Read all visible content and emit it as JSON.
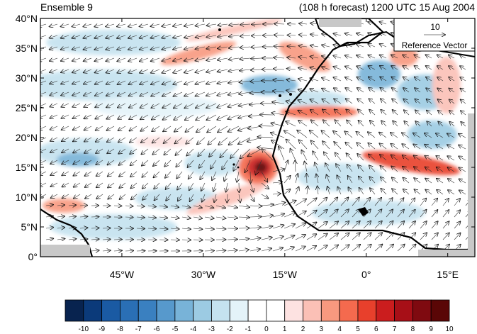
{
  "header": {
    "left_title": "Ensemble 9",
    "right_title": "(108 h forecast) 1200 UTC 15 Aug 2004"
  },
  "reference_vector": {
    "magnitude_label": "10",
    "caption": "Reference Vector"
  },
  "map": {
    "lon_range": [
      -60,
      20
    ],
    "lat_range": [
      0,
      40
    ],
    "y_ticks": [
      {
        "value": 40,
        "label": "40°N"
      },
      {
        "value": 35,
        "label": "35°N"
      },
      {
        "value": 30,
        "label": "30°N"
      },
      {
        "value": 25,
        "label": "25°N"
      },
      {
        "value": 20,
        "label": "20°N"
      },
      {
        "value": 15,
        "label": "15°N"
      },
      {
        "value": 10,
        "label": "10°N"
      },
      {
        "value": 5,
        "label": "5°N"
      },
      {
        "value": 0,
        "label": "0°"
      }
    ],
    "x_ticks": [
      {
        "value": -45,
        "label": "45°W"
      },
      {
        "value": -30,
        "label": "30°W"
      },
      {
        "value": -15,
        "label": "15°W"
      },
      {
        "value": 0,
        "label": "0°"
      },
      {
        "value": 15,
        "label": "15°E"
      }
    ],
    "land_color": "#c8c8c8",
    "coast_color": "#000000"
  },
  "colorbar": {
    "labels": [
      "-10",
      "-9",
      "-8",
      "-7",
      "-6",
      "-5",
      "-4",
      "-3",
      "-2",
      "-1",
      "0",
      "1",
      "2",
      "3",
      "4",
      "5",
      "6",
      "7",
      "8",
      "9",
      "10"
    ],
    "colors": [
      "#08234f",
      "#0b3a7a",
      "#1a5aa3",
      "#2a6fb5",
      "#3a80c0",
      "#5799cc",
      "#78b3d8",
      "#9ccbe3",
      "#c4e2ef",
      "#e4f3f9",
      "#ffffff",
      "#ffffff",
      "#fde2e1",
      "#fbc0b6",
      "#f8997f",
      "#f46a4e",
      "#e8402c",
      "#cb1d1e",
      "#a70f17",
      "#7f0a10",
      "#5a0606"
    ]
  }
}
